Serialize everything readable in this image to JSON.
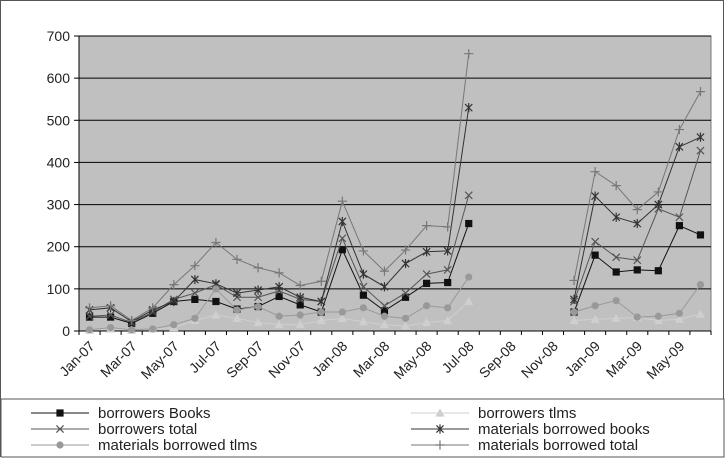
{
  "chart_data": {
    "type": "line",
    "title": "",
    "xlabel": "",
    "ylabel": "",
    "ylim": [
      0,
      700
    ],
    "y_ticks": [
      0,
      100,
      200,
      300,
      400,
      500,
      600,
      700
    ],
    "grid": "horizontal",
    "plot_background": "#c0c0c0",
    "legend_position": "bottom",
    "x": [
      "Jan-07",
      "Feb-07",
      "Mar-07",
      "Apr-07",
      "May-07",
      "Jun-07",
      "Jul-07",
      "Aug-07",
      "Sep-07",
      "Oct-07",
      "Nov-07",
      "Dec-07",
      "Jan-08",
      "Feb-08",
      "Mar-08",
      "Apr-08",
      "May-08",
      "Jun-08",
      "Jul-08",
      "Aug-08",
      "Sep-08",
      "Oct-08",
      "Nov-08",
      "Dec-08",
      "Jan-09",
      "Feb-09",
      "Mar-09",
      "Apr-09",
      "May-09",
      "Jun-09"
    ],
    "x_tick_labels": [
      "Jan-07",
      "Mar-07",
      "May-07",
      "Jul-07",
      "Sep-07",
      "Nov-07",
      "Jan-08",
      "Mar-08",
      "May-08",
      "Jul-08",
      "Sep-08",
      "Nov-08",
      "Jan-09",
      "Mar-09",
      "May-09"
    ],
    "series": [
      {
        "name": "borrowers Books",
        "marker": "square",
        "color": "#111111",
        "values": [
          33,
          33,
          18,
          42,
          70,
          75,
          70,
          52,
          58,
          82,
          62,
          45,
          193,
          85,
          48,
          80,
          113,
          115,
          255,
          null,
          null,
          null,
          null,
          45,
          180,
          140,
          145,
          143,
          250,
          228
        ]
      },
      {
        "name": "borrowers tlms",
        "marker": "triangle",
        "color": "#cfcfcf",
        "values": [
          2,
          5,
          2,
          5,
          8,
          25,
          38,
          30,
          20,
          15,
          15,
          25,
          30,
          22,
          15,
          12,
          20,
          25,
          70,
          null,
          null,
          null,
          null,
          25,
          28,
          30,
          32,
          25,
          28,
          40
        ]
      },
      {
        "name": "borrowers total",
        "marker": "x",
        "color": "#555555",
        "values": [
          35,
          38,
          20,
          45,
          75,
          90,
          110,
          80,
          80,
          95,
          75,
          70,
          220,
          105,
          60,
          90,
          135,
          145,
          322,
          null,
          null,
          null,
          null,
          70,
          212,
          175,
          168,
          290,
          270,
          428
        ]
      },
      {
        "name": "materials borrowed books",
        "marker": "asterisk",
        "color": "#333333",
        "values": [
          50,
          55,
          22,
          50,
          70,
          122,
          112,
          90,
          97,
          105,
          80,
          70,
          260,
          135,
          105,
          160,
          188,
          190,
          530,
          null,
          null,
          null,
          null,
          75,
          320,
          270,
          255,
          300,
          437,
          460
        ]
      },
      {
        "name": "materials borrowed tlms",
        "marker": "circle",
        "color": "#999999",
        "values": [
          3,
          8,
          3,
          5,
          15,
          30,
          100,
          50,
          58,
          35,
          38,
          45,
          45,
          55,
          35,
          30,
          60,
          55,
          128,
          null,
          null,
          null,
          null,
          45,
          60,
          72,
          33,
          35,
          42,
          110
        ]
      },
      {
        "name": "materials borrowed total",
        "marker": "plus",
        "color": "#777777",
        "values": [
          55,
          60,
          25,
          55,
          110,
          155,
          210,
          170,
          150,
          138,
          108,
          118,
          308,
          190,
          142,
          192,
          250,
          247,
          658,
          null,
          null,
          null,
          null,
          120,
          378,
          345,
          288,
          330,
          478,
          568
        ]
      }
    ],
    "legend_order": [
      "borrowers Books",
      "borrowers tlms",
      "borrowers total",
      "materials borrowed books",
      "materials borrowed tlms",
      "materials borrowed total"
    ]
  }
}
